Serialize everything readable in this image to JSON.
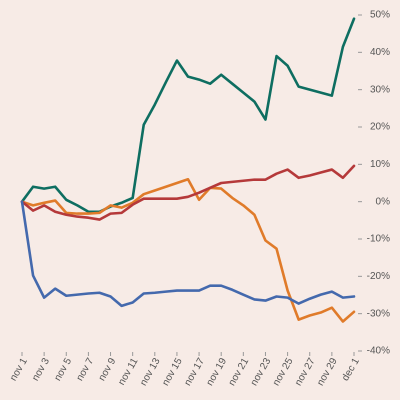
{
  "chart_data": {
    "type": "line",
    "categories": [
      "nov 1",
      null,
      "nov 3",
      null,
      "nov 5",
      null,
      "nov 7",
      null,
      "nov 9",
      null,
      "nov 11",
      null,
      "nov 13",
      null,
      "nov 15",
      null,
      "nov 17",
      null,
      "nov 19",
      null,
      "nov 21",
      null,
      "nov 23",
      null,
      "nov 25",
      null,
      "nov 27",
      null,
      "nov 29",
      null,
      "dec 1"
    ],
    "series": [
      {
        "color": "#0e6e61",
        "values": [
          0,
          4,
          3.5,
          4,
          0.5,
          -1,
          -2.7,
          -2.7,
          -1.3,
          -0.3,
          1,
          20.6,
          26,
          32,
          37.8,
          33.5,
          32.7,
          31.6,
          34,
          31.6,
          29.2,
          26.8,
          22,
          39,
          36.4,
          30.8,
          30,
          29.2,
          28.4,
          41.5,
          49
        ]
      },
      {
        "color": "#e07b2a",
        "values": [
          0,
          -1,
          -0.3,
          0.3,
          -3,
          -3.2,
          -3.2,
          -3,
          -1,
          -1.6,
          -0.3,
          2,
          3,
          4,
          5,
          6,
          0.5,
          3.7,
          3.5,
          1,
          -1,
          -3.5,
          -10.4,
          -12.6,
          -23.8,
          -31.6,
          -30.5,
          -29.7,
          -28.4,
          -32.1,
          -29.5
        ]
      },
      {
        "color": "#b5393a",
        "values": [
          0,
          -2.4,
          -1,
          -2.7,
          -3.5,
          -4,
          -4.3,
          -4.8,
          -3.2,
          -3,
          -0.8,
          0.8,
          0.8,
          0.8,
          0.8,
          1.3,
          2.4,
          3.7,
          5,
          5.3,
          5.6,
          5.9,
          5.9,
          7.5,
          8.6,
          6.4,
          7,
          7.8,
          8.6,
          6.4,
          9.6
        ]
      },
      {
        "color": "#4469ad",
        "values": [
          0,
          -19.8,
          -25.7,
          -23.3,
          -25.2,
          -24.9,
          -24.6,
          -24.4,
          -25.4,
          -27.9,
          -27,
          -24.6,
          -24.4,
          -24.1,
          -23.8,
          -23.8,
          -23.8,
          -22.5,
          -22.5,
          -23.6,
          -24.9,
          -26.2,
          -26.5,
          -25.4,
          -25.7,
          -27.3,
          -26,
          -24.9,
          -24.1,
          -25.7,
          -25.4
        ]
      }
    ],
    "ylim": [
      -40,
      50
    ],
    "yticks": [
      {
        "value": 50,
        "label": "50%"
      },
      {
        "value": 40,
        "label": "40%"
      },
      {
        "value": 30,
        "label": "30%"
      },
      {
        "value": 20,
        "label": "20%"
      },
      {
        "value": 10,
        "label": "10%"
      },
      {
        "value": 0,
        "label": "0%"
      },
      {
        "value": -10,
        "label": "-10%"
      },
      {
        "value": -20,
        "label": "-20%"
      },
      {
        "value": -30,
        "label": "-30%"
      },
      {
        "value": -40,
        "label": "-40%"
      }
    ],
    "grid": false
  }
}
